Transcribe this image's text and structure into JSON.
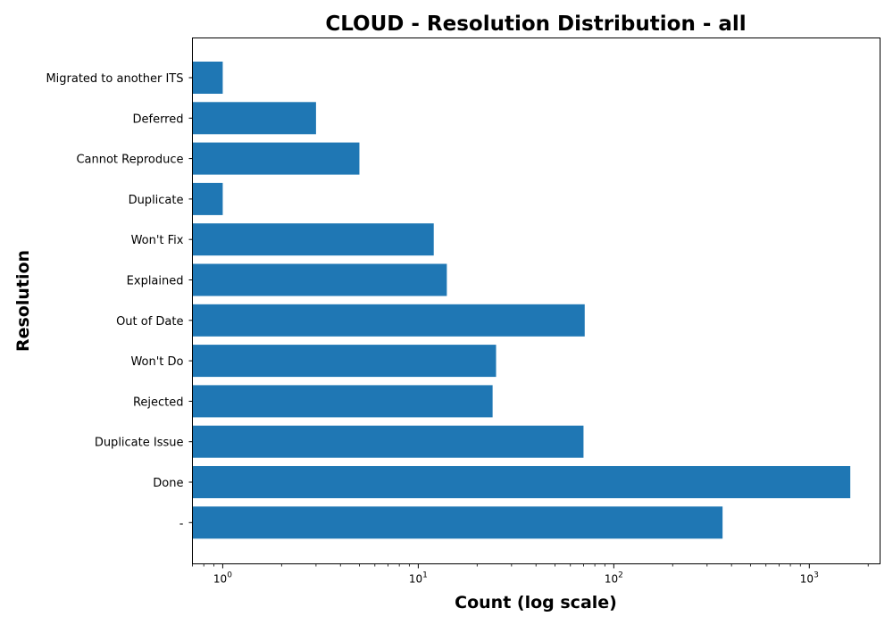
{
  "chart_data": {
    "type": "bar",
    "orientation": "horizontal",
    "title": "CLOUD - Resolution Distribution - all",
    "xlabel": "Count (log scale)",
    "ylabel": "Resolution",
    "xscale": "log",
    "xlim": [
      0.7,
      2300
    ],
    "x_ticks": [
      {
        "value": 1,
        "base": "10",
        "exp": "0"
      },
      {
        "value": 10,
        "base": "10",
        "exp": "1"
      },
      {
        "value": 100,
        "base": "10",
        "exp": "2"
      },
      {
        "value": 1000,
        "base": "10",
        "exp": "3"
      }
    ],
    "categories": [
      "Migrated to another ITS",
      "Deferred",
      "Cannot Reproduce",
      "Duplicate",
      "Won't Fix",
      "Explained",
      "Out of Date",
      "Won't Do",
      "Rejected",
      "Duplicate Issue",
      "Done",
      "-"
    ],
    "values": [
      1,
      3,
      5,
      1,
      12,
      14,
      71,
      25,
      24,
      70,
      1620,
      360
    ],
    "bar_color": "#1f77b4",
    "grid": false,
    "legend": "none"
  }
}
